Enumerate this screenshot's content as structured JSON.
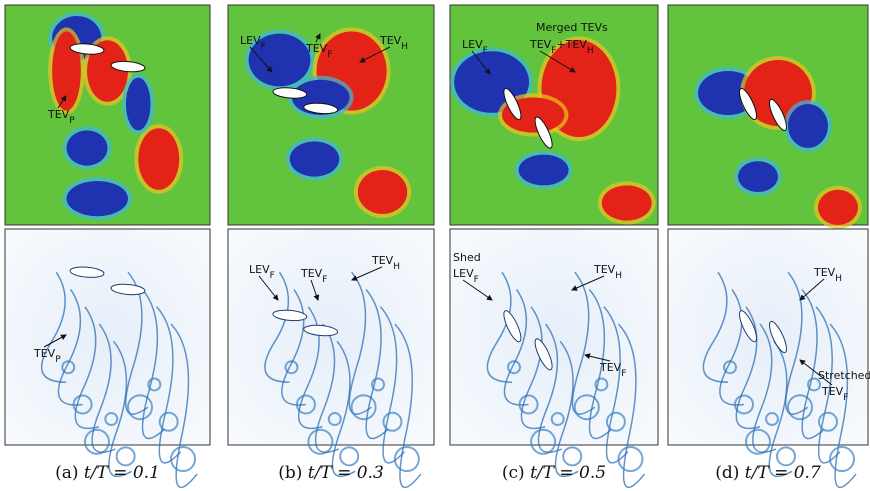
{
  "panels": [
    {
      "caption": {
        "label": "(a)",
        "expression": "t/T = 0.1"
      },
      "top_annotations": [
        {
          "parts": [
            {
              "text": "TEV",
              "sub": "P"
            }
          ]
        }
      ],
      "bottom_annotations": [
        {
          "parts": [
            {
              "text": "TEV",
              "sub": "P"
            }
          ]
        }
      ]
    },
    {
      "caption": {
        "label": "(b)",
        "expression": "t/T = 0.3"
      },
      "top_annotations": [
        {
          "parts": [
            {
              "text": "LEV",
              "sub": "F"
            }
          ]
        },
        {
          "parts": [
            {
              "text": "TEV",
              "sub": "F"
            }
          ]
        },
        {
          "parts": [
            {
              "text": "TEV",
              "sub": "H"
            }
          ]
        }
      ],
      "bottom_annotations": [
        {
          "parts": [
            {
              "text": "LEV",
              "sub": "F"
            }
          ]
        },
        {
          "parts": [
            {
              "text": "TEV",
              "sub": "F"
            }
          ]
        },
        {
          "parts": [
            {
              "text": "TEV",
              "sub": "H"
            }
          ]
        }
      ]
    },
    {
      "caption": {
        "label": "(c)",
        "expression": "t/T = 0.5"
      },
      "top_annotations": [
        {
          "parts": [
            {
              "text": "LEV",
              "sub": "F"
            }
          ]
        },
        {
          "parts": [
            {
              "text": "Merged TEVs"
            }
          ]
        },
        {
          "parts": [
            {
              "text": "TEV",
              "sub": "F"
            },
            {
              "text": "+"
            },
            {
              "text": "TEV",
              "sub": "H"
            }
          ]
        }
      ],
      "bottom_annotations": [
        {
          "parts": [
            {
              "text": "Shed"
            }
          ]
        },
        {
          "parts": [
            {
              "text": "LEV",
              "sub": "F"
            }
          ]
        },
        {
          "parts": [
            {
              "text": "TEV",
              "sub": "H"
            }
          ]
        },
        {
          "parts": [
            {
              "text": "TEV",
              "sub": "F"
            }
          ]
        }
      ]
    },
    {
      "caption": {
        "label": "(d)",
        "expression": "t/T = 0.7"
      },
      "top_annotations": [],
      "bottom_annotations": [
        {
          "parts": [
            {
              "text": "TEV",
              "sub": "H"
            }
          ]
        },
        {
          "parts": [
            {
              "text": "Stretched"
            }
          ]
        },
        {
          "parts": [
            {
              "text": "TEV",
              "sub": "F"
            }
          ]
        }
      ]
    }
  ]
}
